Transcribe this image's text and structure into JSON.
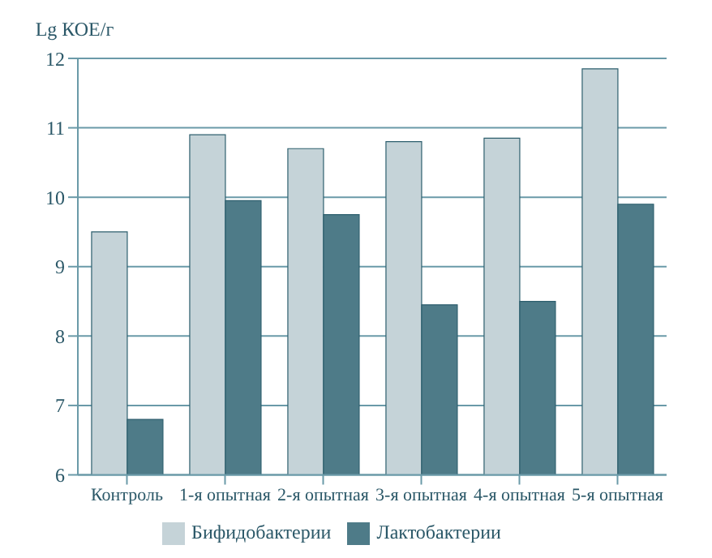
{
  "chart_data": {
    "type": "bar",
    "ylabel": "Lg КОЕ/г",
    "categories": [
      "Контроль",
      "1-я опытная",
      "2-я опытная",
      "3-я опытная",
      "4-я опытная",
      "5-я опытная"
    ],
    "series": [
      {
        "name": "Бифидобактерии",
        "color": "#c5d3d8",
        "values": [
          9.5,
          10.9,
          10.7,
          10.8,
          10.85,
          11.85
        ]
      },
      {
        "name": "Лактобактерии",
        "color": "#4e7b88",
        "values": [
          6.8,
          9.95,
          9.75,
          8.45,
          8.5,
          9.9
        ]
      }
    ],
    "ylim": [
      6,
      12
    ],
    "yticks": [
      6,
      7,
      8,
      9,
      10,
      11,
      12
    ],
    "grid": "y",
    "legend": "bottom"
  }
}
